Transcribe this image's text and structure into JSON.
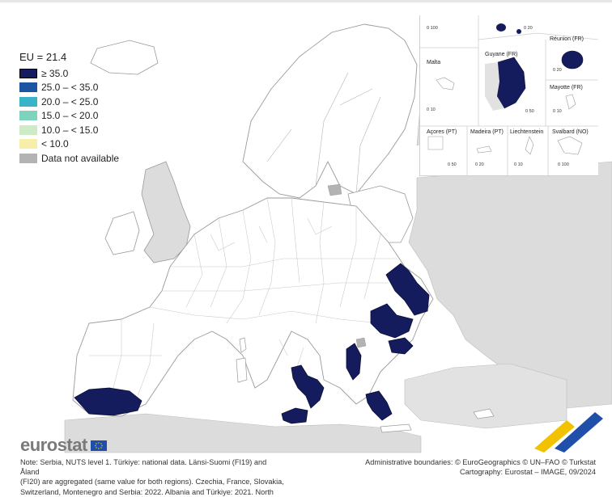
{
  "legend": {
    "title": "EU = 21.4",
    "items": [
      {
        "label": "≥ 35.0",
        "color": "#151c5e",
        "border": "#000000"
      },
      {
        "label": "25.0 – < 35.0",
        "color": "#1c55a1",
        "border": "#1c55a1"
      },
      {
        "label": "20.0 – < 25.0",
        "color": "#39b3c7",
        "border": "#39b3c7"
      },
      {
        "label": "15.0 – < 20.0",
        "color": "#7ed3bd",
        "border": "#7ed3bd"
      },
      {
        "label": "10.0 – < 15.0",
        "color": "#cdebc4",
        "border": "#cdebc4"
      },
      {
        "label": "< 10.0",
        "color": "#f7eeaa",
        "border": "#f7eeaa"
      },
      {
        "label": "Data not available",
        "color": "#b3b3b3",
        "border": "#b3b3b3"
      }
    ]
  },
  "insets": {
    "malta": "Malta",
    "guyane": "Guyane (FR)",
    "reunion": "Réunion (FR)",
    "mayotte": "Mayotte (FR)",
    "acores": "Açores (PT)",
    "madeira": "Madeira (PT)",
    "liechtenstein": "Liechtenstein",
    "svalbard": "Svalbard (NO)",
    "scales": {
      "top_left": "0 100",
      "top_right": "0 20",
      "malta": "0 10",
      "guyane": "0 50",
      "reunion": "0 20",
      "mayotte": "0 10",
      "acores": "0 50",
      "madeira": "0 20",
      "liechtenstein": "0 10",
      "svalbard": "0 100"
    }
  },
  "logo": "eurostat",
  "footer": {
    "note_lines": [
      "Note: Serbia, NUTS level 1. Türkiye: national data. Länsi-Suomi (FI19) and Åland",
      "(FI20) are aggregated (same value for both regions). Czechia, France, Slovakia,",
      "Switzerland, Montenegro and Serbia: 2022. Albania and Türkiye: 2021. North"
    ],
    "credit_lines": [
      "Administrative boundaries: © EuroGeographics © UN–FAO © Turkstat",
      "Cartography: Eurostat – IMAGE, 09/2024"
    ]
  },
  "colors": {
    "land": "#ffffff",
    "border": "#9a9a9a",
    "outside": "#dcdcdc",
    "sea": "#ffffff",
    "top": "#151c5e",
    "accent_yellow": "#f2c200",
    "accent_blue": "#1f4fa8"
  }
}
